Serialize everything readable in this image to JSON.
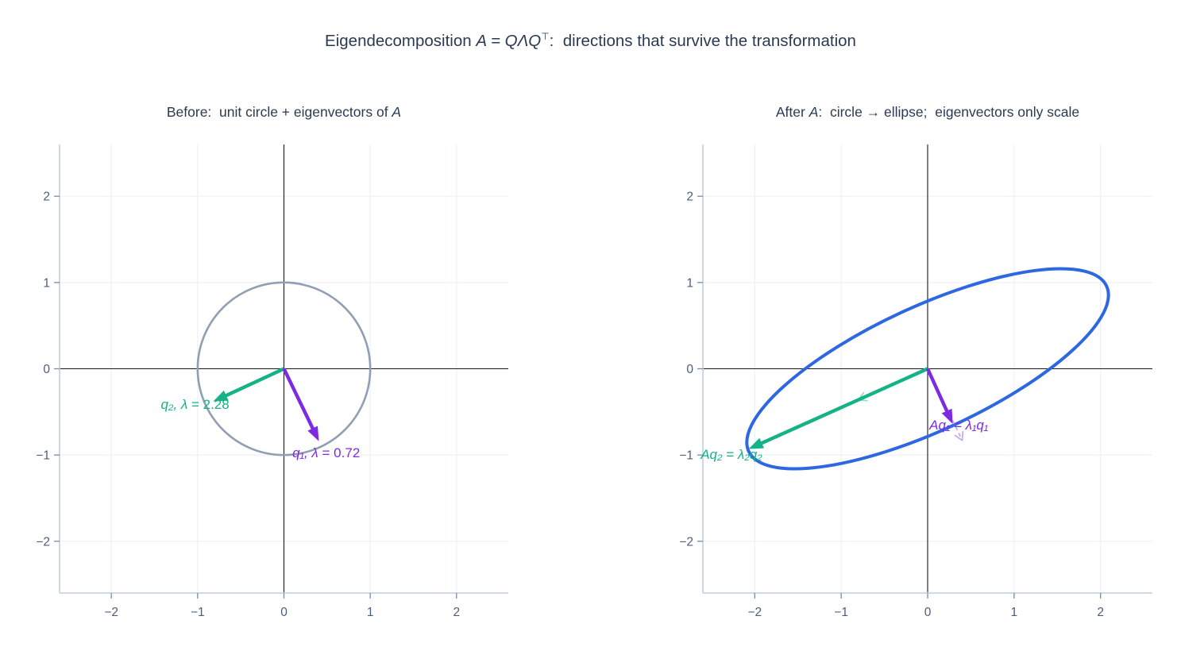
{
  "figure_title": {
    "pre": "Eigendecomposition ",
    "math": "A = QΛQ",
    "sup": "⊤",
    "post": ":  directions that survive the transformation"
  },
  "colors": {
    "background": "#ffffff",
    "title": "#2b3a52",
    "tick_label": "#4b5d7e",
    "tick_mark": "#7a8ba5",
    "spine": "#c9d3e1",
    "grid": "#edf1f8",
    "axis_zero": "#1a1a1a",
    "circle": "#919eb4",
    "ellipse": "#2e68e0",
    "green": "#14b287",
    "purple": "#7c2be2",
    "green_faint": "#93dec3",
    "purple_faint": "#c6a6f2"
  },
  "chart_data": [
    {
      "type": "line",
      "id": "before",
      "title": {
        "pre": "Before:  unit circle + eigenvectors of ",
        "math": "A",
        "post": ""
      },
      "xlim": [
        -2.6,
        2.6
      ],
      "ylim": [
        -2.6,
        2.6
      ],
      "xticks": [
        -2,
        -1,
        0,
        1,
        2
      ],
      "yticks": [
        -2,
        -1,
        0,
        1,
        2
      ],
      "grid": true,
      "unit_circle": {
        "r": 1,
        "color": "#919eb4",
        "width": 2.6
      },
      "eigenvectors": [
        {
          "name": "q1",
          "vector": [
            0.43,
            -0.895
          ],
          "eigenvalue": 0.72,
          "color": "#7c2be2"
        },
        {
          "name": "q2",
          "vector": [
            -0.907,
            -0.42
          ],
          "eigenvalue": 2.28,
          "color": "#14b287"
        }
      ],
      "arrows": [
        {
          "to": [
            -0.82,
            -0.38
          ],
          "color": "#14b287",
          "style": "solid"
        },
        {
          "to": [
            0.405,
            -0.84
          ],
          "color": "#7c2be2",
          "style": "solid"
        }
      ],
      "annotations": [
        {
          "math": "q₂, λ",
          "plain": " = 2.28",
          "x": -1.03,
          "y": -0.41,
          "color": "#14b287"
        },
        {
          "math": "q₁, λ",
          "plain": " = 0.72",
          "x": 0.49,
          "y": -0.97,
          "color": "#7c2be2"
        }
      ]
    },
    {
      "type": "line",
      "id": "after",
      "title": {
        "pre": "After ",
        "math": "A",
        "post": ":  circle → ellipse;  eigenvectors only scale"
      },
      "xlim": [
        -2.6,
        2.6
      ],
      "ylim": [
        -2.6,
        2.6
      ],
      "xticks": [
        -2,
        -1,
        0,
        1,
        2
      ],
      "yticks": [
        -2,
        -1,
        0,
        1,
        2
      ],
      "grid": true,
      "ellipse": {
        "a": 2.28,
        "b": 0.72,
        "angle_deg": 24.8,
        "color": "#2e68e0",
        "width": 4
      },
      "arrows": [
        {
          "to": [
            0.4,
            -0.83
          ],
          "color": "#c6a6f2",
          "style": "faint"
        },
        {
          "to": [
            -0.8,
            -0.36
          ],
          "color": "#93dec3",
          "style": "faint"
        },
        {
          "to": [
            -2.07,
            -0.93
          ],
          "color": "#14b287",
          "style": "solid"
        },
        {
          "to": [
            0.29,
            -0.64
          ],
          "color": "#7c2be2",
          "style": "solid"
        }
      ],
      "annotations": [
        {
          "math": "Aq₁ = λ₁q₁",
          "plain": "",
          "x": 0.36,
          "y": -0.65,
          "color": "#7c2be2"
        },
        {
          "math": "Aq₂ = λ₂q₂",
          "plain": "",
          "x": -2.27,
          "y": -0.99,
          "color": "#14b287"
        }
      ]
    }
  ]
}
